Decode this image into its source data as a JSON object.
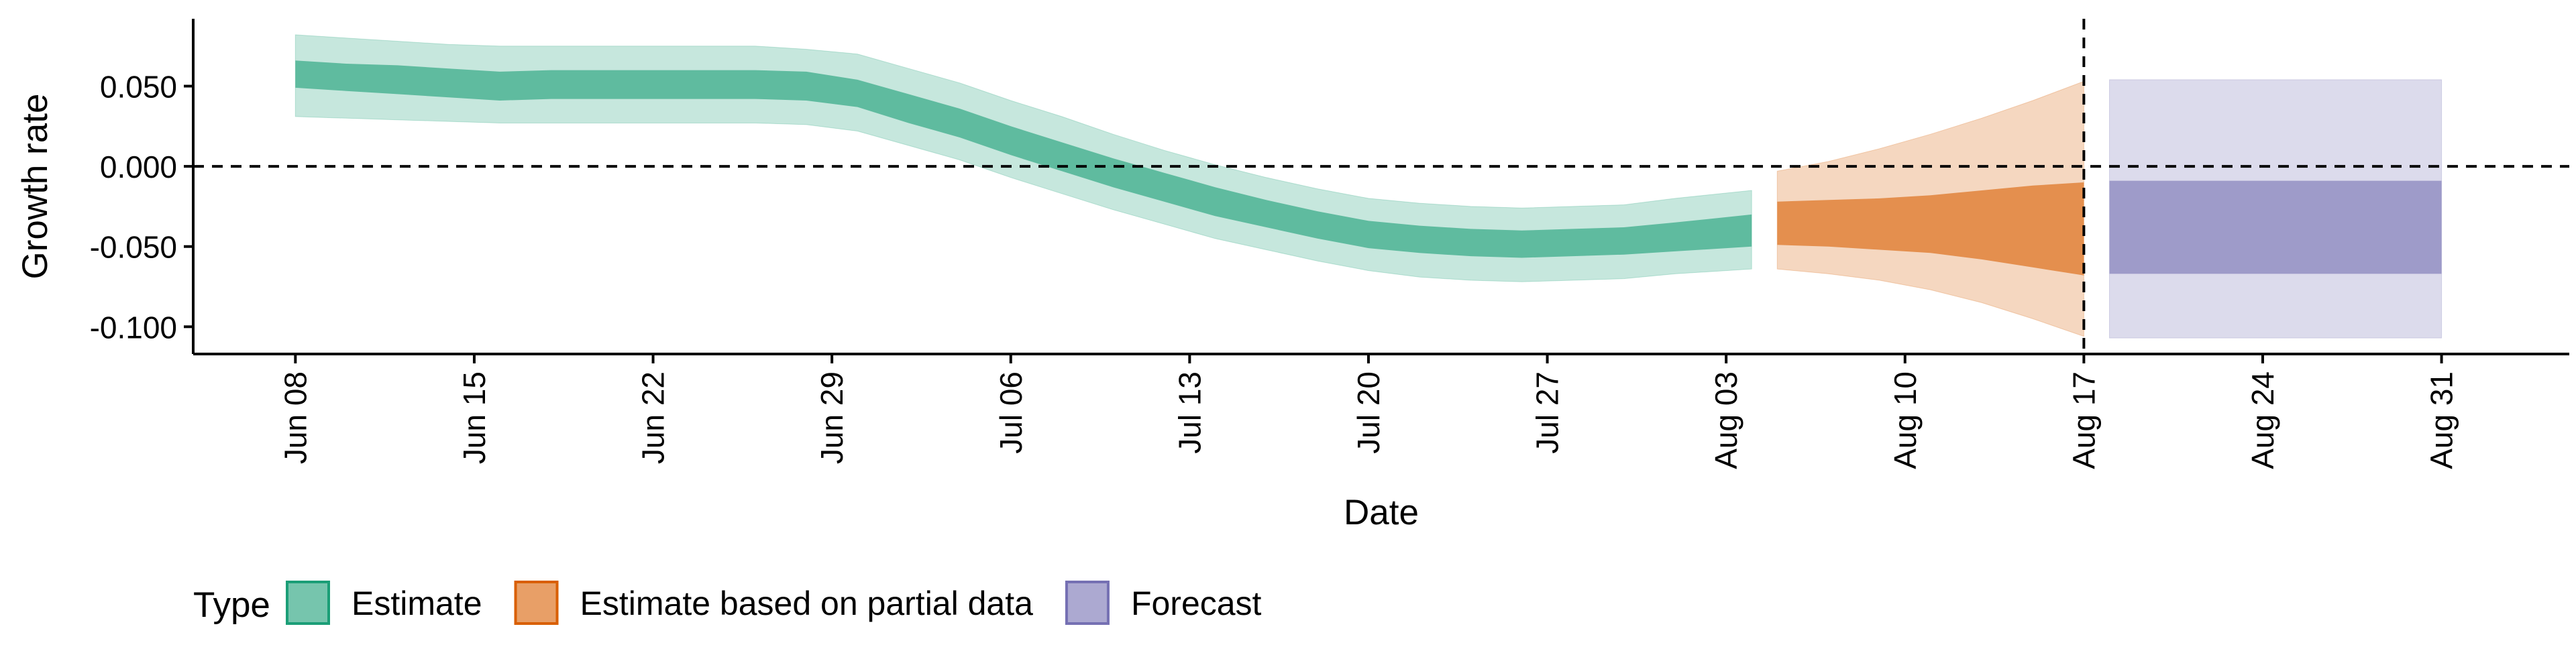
{
  "chart_data": {
    "type": "area",
    "xlabel": "Date",
    "ylabel": "Growth rate",
    "x_axis_type": "date",
    "xlim": [
      "2020-06-04",
      "2020-09-05"
    ],
    "ylim": [
      -0.117,
      0.092
    ],
    "grid": false,
    "legend_position": "bottom-left",
    "legend_title": "Type",
    "x_ticks": [
      {
        "date": "2020-06-08",
        "label": "Jun 08"
      },
      {
        "date": "2020-06-15",
        "label": "Jun 15"
      },
      {
        "date": "2020-06-22",
        "label": "Jun 22"
      },
      {
        "date": "2020-06-29",
        "label": "Jun 29"
      },
      {
        "date": "2020-07-06",
        "label": "Jul 06"
      },
      {
        "date": "2020-07-13",
        "label": "Jul 13"
      },
      {
        "date": "2020-07-20",
        "label": "Jul 20"
      },
      {
        "date": "2020-07-27",
        "label": "Jul 27"
      },
      {
        "date": "2020-08-03",
        "label": "Aug 03"
      },
      {
        "date": "2020-08-10",
        "label": "Aug 10"
      },
      {
        "date": "2020-08-17",
        "label": "Aug 17"
      },
      {
        "date": "2020-08-24",
        "label": "Aug 24"
      },
      {
        "date": "2020-08-31",
        "label": "Aug 31"
      }
    ],
    "y_ticks": [
      {
        "value": 0.05,
        "label": "0.050"
      },
      {
        "value": 0.0,
        "label": "0.000"
      },
      {
        "value": -0.05,
        "label": "-0.050"
      },
      {
        "value": -0.1,
        "label": "-0.100"
      }
    ],
    "reference_lines": [
      {
        "axis": "y",
        "value": 0.0,
        "style": "dashed"
      },
      {
        "axis": "x",
        "value": "2020-08-17",
        "style": "dashed"
      }
    ],
    "series": [
      {
        "name": "Estimate",
        "color": "#1b9e77",
        "points": [
          {
            "date": "2020-06-08",
            "outer_lo": 0.031,
            "inner_lo": 0.049,
            "inner_hi": 0.066,
            "outer_hi": 0.082
          },
          {
            "date": "2020-06-10",
            "outer_lo": 0.03,
            "inner_lo": 0.047,
            "inner_hi": 0.064,
            "outer_hi": 0.08
          },
          {
            "date": "2020-06-12",
            "outer_lo": 0.029,
            "inner_lo": 0.045,
            "inner_hi": 0.063,
            "outer_hi": 0.078
          },
          {
            "date": "2020-06-14",
            "outer_lo": 0.028,
            "inner_lo": 0.043,
            "inner_hi": 0.061,
            "outer_hi": 0.076
          },
          {
            "date": "2020-06-16",
            "outer_lo": 0.027,
            "inner_lo": 0.041,
            "inner_hi": 0.059,
            "outer_hi": 0.075
          },
          {
            "date": "2020-06-18",
            "outer_lo": 0.027,
            "inner_lo": 0.042,
            "inner_hi": 0.06,
            "outer_hi": 0.075
          },
          {
            "date": "2020-06-20",
            "outer_lo": 0.027,
            "inner_lo": 0.042,
            "inner_hi": 0.06,
            "outer_hi": 0.075
          },
          {
            "date": "2020-06-22",
            "outer_lo": 0.027,
            "inner_lo": 0.042,
            "inner_hi": 0.06,
            "outer_hi": 0.075
          },
          {
            "date": "2020-06-24",
            "outer_lo": 0.027,
            "inner_lo": 0.042,
            "inner_hi": 0.06,
            "outer_hi": 0.075
          },
          {
            "date": "2020-06-26",
            "outer_lo": 0.027,
            "inner_lo": 0.042,
            "inner_hi": 0.06,
            "outer_hi": 0.075
          },
          {
            "date": "2020-06-28",
            "outer_lo": 0.026,
            "inner_lo": 0.041,
            "inner_hi": 0.059,
            "outer_hi": 0.073
          },
          {
            "date": "2020-06-30",
            "outer_lo": 0.022,
            "inner_lo": 0.037,
            "inner_hi": 0.054,
            "outer_hi": 0.07
          },
          {
            "date": "2020-07-02",
            "outer_lo": 0.013,
            "inner_lo": 0.027,
            "inner_hi": 0.045,
            "outer_hi": 0.061
          },
          {
            "date": "2020-07-04",
            "outer_lo": 0.004,
            "inner_lo": 0.018,
            "inner_hi": 0.036,
            "outer_hi": 0.052
          },
          {
            "date": "2020-07-06",
            "outer_lo": -0.007,
            "inner_lo": 0.007,
            "inner_hi": 0.025,
            "outer_hi": 0.041
          },
          {
            "date": "2020-07-08",
            "outer_lo": -0.017,
            "inner_lo": -0.003,
            "inner_hi": 0.015,
            "outer_hi": 0.031
          },
          {
            "date": "2020-07-10",
            "outer_lo": -0.027,
            "inner_lo": -0.013,
            "inner_hi": 0.005,
            "outer_hi": 0.02
          },
          {
            "date": "2020-07-12",
            "outer_lo": -0.036,
            "inner_lo": -0.022,
            "inner_hi": -0.004,
            "outer_hi": 0.01
          },
          {
            "date": "2020-07-14",
            "outer_lo": -0.045,
            "inner_lo": -0.031,
            "inner_hi": -0.013,
            "outer_hi": 0.001
          },
          {
            "date": "2020-07-16",
            "outer_lo": -0.052,
            "inner_lo": -0.038,
            "inner_hi": -0.021,
            "outer_hi": -0.007
          },
          {
            "date": "2020-07-18",
            "outer_lo": -0.059,
            "inner_lo": -0.045,
            "inner_hi": -0.028,
            "outer_hi": -0.014
          },
          {
            "date": "2020-07-20",
            "outer_lo": -0.065,
            "inner_lo": -0.051,
            "inner_hi": -0.034,
            "outer_hi": -0.02
          },
          {
            "date": "2020-07-22",
            "outer_lo": -0.069,
            "inner_lo": -0.054,
            "inner_hi": -0.037,
            "outer_hi": -0.023
          },
          {
            "date": "2020-07-24",
            "outer_lo": -0.071,
            "inner_lo": -0.056,
            "inner_hi": -0.039,
            "outer_hi": -0.025
          },
          {
            "date": "2020-07-26",
            "outer_lo": -0.072,
            "inner_lo": -0.057,
            "inner_hi": -0.04,
            "outer_hi": -0.026
          },
          {
            "date": "2020-07-28",
            "outer_lo": -0.071,
            "inner_lo": -0.056,
            "inner_hi": -0.039,
            "outer_hi": -0.025
          },
          {
            "date": "2020-07-30",
            "outer_lo": -0.07,
            "inner_lo": -0.055,
            "inner_hi": -0.038,
            "outer_hi": -0.024
          },
          {
            "date": "2020-08-01",
            "outer_lo": -0.067,
            "inner_lo": -0.053,
            "inner_hi": -0.035,
            "outer_hi": -0.02
          },
          {
            "date": "2020-08-04",
            "outer_lo": -0.064,
            "inner_lo": -0.05,
            "inner_hi": -0.03,
            "outer_hi": -0.015
          }
        ]
      },
      {
        "name": "Estimate based on partial data",
        "color": "#d95f02",
        "points": [
          {
            "date": "2020-08-05",
            "outer_lo": -0.064,
            "inner_lo": -0.049,
            "inner_hi": -0.022,
            "outer_hi": -0.003
          },
          {
            "date": "2020-08-07",
            "outer_lo": -0.067,
            "inner_lo": -0.05,
            "inner_hi": -0.021,
            "outer_hi": 0.003
          },
          {
            "date": "2020-08-09",
            "outer_lo": -0.071,
            "inner_lo": -0.052,
            "inner_hi": -0.02,
            "outer_hi": 0.011
          },
          {
            "date": "2020-08-11",
            "outer_lo": -0.077,
            "inner_lo": -0.054,
            "inner_hi": -0.018,
            "outer_hi": 0.02
          },
          {
            "date": "2020-08-13",
            "outer_lo": -0.085,
            "inner_lo": -0.058,
            "inner_hi": -0.015,
            "outer_hi": 0.03
          },
          {
            "date": "2020-08-15",
            "outer_lo": -0.095,
            "inner_lo": -0.063,
            "inner_hi": -0.012,
            "outer_hi": 0.041
          },
          {
            "date": "2020-08-17",
            "outer_lo": -0.106,
            "inner_lo": -0.068,
            "inner_hi": -0.01,
            "outer_hi": 0.053
          }
        ]
      },
      {
        "name": "Forecast",
        "color": "#7570b3",
        "points": [
          {
            "date": "2020-08-18",
            "outer_lo": -0.107,
            "inner_lo": -0.067,
            "inner_hi": -0.009,
            "outer_hi": 0.054
          },
          {
            "date": "2020-08-31",
            "outer_lo": -0.107,
            "inner_lo": -0.067,
            "inner_hi": -0.009,
            "outer_hi": 0.054
          }
        ]
      }
    ]
  }
}
